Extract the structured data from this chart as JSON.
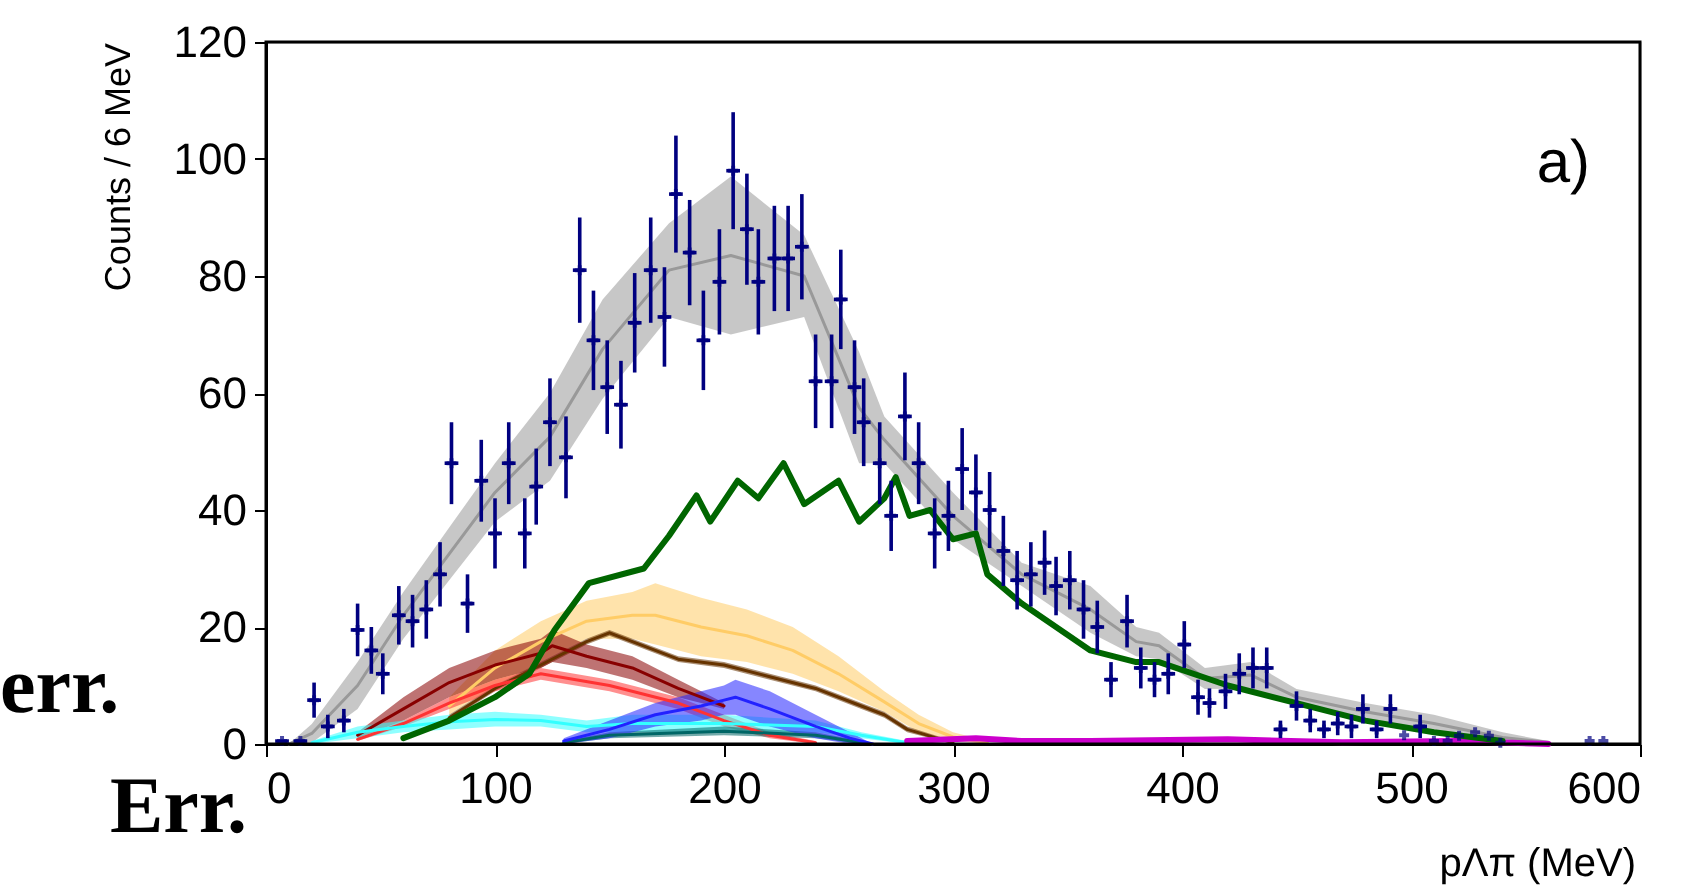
{
  "chart_data": {
    "type": "line",
    "xlabel": "pΛπ (MeV)",
    "ylabel": "Counts / 6 MeV",
    "annotations": [
      "a)",
      "err.",
      "Err."
    ],
    "xlim": [
      0,
      600
    ],
    "xticks": [
      0,
      100,
      200,
      300,
      400,
      500,
      600
    ],
    "ylim": [
      0,
      120
    ],
    "yticks": [
      0,
      20,
      40,
      60,
      80,
      100,
      120
    ],
    "grid": false,
    "line_style": "solid",
    "series": [
      {
        "type": "line",
        "color": "#999999",
        "x": [
          10,
          20,
          40,
          60,
          80,
          100,
          124,
          147,
          176,
          203,
          235,
          259,
          270,
          300,
          330,
          360,
          380,
          390,
          410,
          430,
          450,
          480,
          510,
          540,
          560
        ],
        "lower": [
          0,
          0.2,
          6,
          18,
          28,
          38,
          45,
          59,
          73,
          70,
          73,
          48,
          48,
          35,
          27,
          19,
          15,
          14.5,
          9.4,
          9.5,
          6.5,
          4,
          2,
          0.2,
          0
        ],
        "upper": [
          0,
          3.4,
          14,
          26,
          37,
          48,
          60,
          76,
          89,
          97,
          87,
          67,
          56,
          43,
          31,
          27,
          20,
          19,
          13,
          14,
          9.4,
          7,
          5,
          2,
          0.5
        ],
        "values": [
          0,
          1.8,
          10,
          22,
          32.5,
          43,
          52.5,
          67.5,
          81,
          83.5,
          80,
          57.5,
          52,
          39,
          29,
          23,
          17.5,
          16.8,
          11.2,
          11.8,
          8,
          5.5,
          3.5,
          1.1,
          0.3
        ]
      },
      {
        "type": "line",
        "color": "#ffcc66",
        "x": [
          80,
          100,
          120,
          140,
          160,
          170,
          190,
          210,
          230,
          250,
          270,
          285,
          300,
          315
        ],
        "lower": [
          5,
          10,
          14,
          18,
          18,
          17,
          15,
          14,
          12,
          9,
          5.5,
          2,
          0.5,
          0
        ],
        "upper": [
          8,
          16,
          21,
          24.5,
          26,
          27.5,
          25,
          23,
          20,
          15,
          9,
          5,
          2,
          0.5
        ],
        "values": [
          6.5,
          13,
          17.5,
          21,
          22,
          22,
          20,
          18.5,
          16,
          12,
          7.2,
          3.5,
          1.2,
          0.2
        ]
      },
      {
        "type": "line",
        "color": "#663300",
        "x": [
          80,
          100,
          120,
          140,
          150,
          160,
          180,
          200,
          220,
          240,
          260,
          270,
          280,
          300
        ],
        "lower": [
          4,
          9,
          13,
          17,
          18.5,
          17,
          14,
          13,
          11,
          9,
          6,
          4.5,
          2,
          0
        ],
        "upper": [
          5,
          10,
          14,
          18,
          19.5,
          18,
          15,
          14,
          12,
          10,
          7,
          5.5,
          3,
          0.5
        ],
        "values": [
          4.5,
          9.5,
          13.5,
          17.5,
          19,
          17.5,
          14.5,
          13.5,
          11.5,
          9.5,
          6.5,
          5,
          2.5,
          0.2
        ]
      },
      {
        "type": "line",
        "color": "#880000",
        "x": [
          40,
          60,
          80,
          100,
          120,
          125,
          140,
          160,
          180,
          190,
          200
        ],
        "lower": [
          1,
          4,
          8,
          11,
          13,
          14,
          13,
          11,
          8,
          7,
          6
        ],
        "upper": [
          2,
          8,
          13,
          16,
          18,
          19.5,
          17,
          15,
          11,
          9,
          7
        ],
        "values": [
          1.5,
          6,
          10.5,
          13.5,
          15.5,
          16.8,
          15,
          13,
          9.5,
          8,
          6.5
        ]
      },
      {
        "type": "line",
        "color": "#ff3333",
        "x": [
          40,
          60,
          80,
          100,
          120,
          150,
          180,
          200,
          220,
          240
        ],
        "lower": [
          0.5,
          3,
          6,
          9,
          11,
          9,
          6,
          3,
          1,
          0
        ],
        "upper": [
          1,
          4,
          8,
          11,
          13,
          11,
          8,
          5,
          2,
          0.5
        ],
        "values": [
          0.8,
          3.5,
          7,
          10,
          12,
          10,
          7,
          4,
          1.5,
          0.2
        ]
      },
      {
        "type": "line",
        "color": "#33ffff",
        "x": [
          20,
          40,
          60,
          80,
          100,
          120,
          140,
          160,
          200,
          240,
          260,
          280
        ],
        "lower": [
          0,
          1,
          2,
          2.5,
          3,
          3,
          2,
          2,
          2,
          2,
          1,
          0
        ],
        "upper": [
          0.5,
          3,
          4,
          5,
          5.5,
          5,
          4,
          5,
          5,
          4,
          2,
          0.5
        ],
        "values": [
          0.2,
          2,
          3,
          3.8,
          4.2,
          4,
          3,
          3.5,
          3.5,
          3,
          1.5,
          0.2
        ]
      },
      {
        "type": "line",
        "color": "#006666",
        "x": [
          130,
          150,
          200,
          240,
          260
        ],
        "lower": [
          0,
          1,
          1.5,
          1,
          0
        ],
        "upper": [
          0.5,
          2,
          3,
          2,
          0.5
        ],
        "values": [
          0.2,
          1.5,
          2.2,
          1.5,
          0.2
        ]
      },
      {
        "type": "line",
        "color": "#2222ff",
        "x": [
          130,
          150,
          170,
          190,
          200,
          205,
          220,
          240,
          255,
          265
        ],
        "lower": [
          0,
          1,
          3,
          4,
          5,
          5,
          3,
          1,
          0,
          0
        ],
        "upper": [
          1,
          4,
          7,
          9,
          10,
          11,
          9,
          5,
          2,
          0
        ],
        "values": [
          0.5,
          2.5,
          5,
          6.5,
          7.5,
          8,
          6,
          3,
          1,
          0
        ]
      },
      {
        "type": "line",
        "color": "#cc00cc",
        "x": [
          280,
          310,
          330,
          360,
          420,
          470,
          520,
          560
        ],
        "values": [
          0.5,
          1,
          0.5,
          0.5,
          0.8,
          0.3,
          0.5,
          0
        ]
      },
      {
        "type": "line",
        "color": "#006600",
        "x": [
          60,
          80,
          100,
          115,
          126,
          141,
          165,
          176,
          188,
          194,
          206,
          215,
          226,
          235,
          250,
          259,
          270,
          275,
          281,
          290,
          300,
          310,
          315,
          330,
          360,
          380,
          390,
          420,
          450,
          480,
          510,
          540
        ],
        "values": [
          1,
          4,
          8,
          12,
          19.5,
          27.5,
          30,
          35.6,
          42.5,
          38,
          45,
          42,
          48,
          41,
          45,
          38,
          42,
          45.6,
          39,
          40,
          35,
          36,
          29,
          24,
          16,
          14,
          14,
          10,
          7,
          4,
          2,
          0.5
        ]
      },
      {
        "type": "scatter",
        "color": "#000080",
        "marker": "cross",
        "x": [
          7,
          15,
          21,
          27,
          34,
          40,
          46,
          51,
          58,
          64,
          70,
          76,
          81,
          88,
          94,
          100,
          106,
          113,
          118,
          124,
          131,
          137,
          143,
          149,
          155,
          161,
          168,
          174,
          179,
          185,
          191,
          198,
          204,
          210,
          215,
          222,
          228,
          234,
          240,
          247,
          251,
          257,
          261,
          268,
          273,
          279,
          285,
          292,
          298,
          304,
          310,
          316,
          322,
          328,
          334,
          340,
          345,
          351,
          357,
          363,
          369,
          376,
          382,
          388,
          394,
          401,
          407,
          412,
          419,
          425,
          431,
          437,
          443,
          450,
          456,
          462,
          468,
          474,
          479,
          485,
          491,
          497,
          504,
          510,
          516,
          521,
          528,
          534,
          539,
          578,
          584
        ],
        "values": [
          0.5,
          0.5,
          7.5,
          3,
          4,
          19.5,
          16,
          12,
          22,
          21,
          23,
          29,
          48,
          24,
          45,
          36,
          48,
          36,
          44,
          55,
          49,
          81,
          69,
          61,
          58,
          72,
          81,
          73,
          94,
          84,
          69,
          79,
          98,
          88,
          79,
          83,
          83,
          85,
          62,
          62,
          76,
          61,
          55,
          48,
          39,
          56,
          48,
          36,
          39,
          47,
          43,
          40,
          33,
          28,
          29,
          31,
          27,
          28,
          23,
          20,
          11,
          21,
          13,
          11,
          12,
          17,
          8,
          7,
          9,
          12,
          13,
          13,
          2.5,
          6.5,
          4,
          2.5,
          3.5,
          3,
          6,
          2.5,
          6,
          1.5,
          3,
          0.5,
          0.5,
          1.4,
          2,
          1.4,
          0.2,
          0.5,
          0.5
        ],
        "errors": [
          null,
          null,
          3,
          2,
          2,
          4.5,
          4,
          3.5,
          5,
          4.5,
          5,
          5.5,
          7,
          5,
          7,
          6,
          7,
          6,
          6.5,
          7.5,
          7,
          9,
          8.5,
          8,
          7.5,
          8.5,
          9,
          8.5,
          10,
          9,
          8.5,
          9,
          10,
          9.5,
          9,
          9,
          9,
          9,
          8,
          8,
          8.5,
          8,
          7.5,
          7,
          6,
          7.5,
          7,
          6,
          6,
          7,
          6.5,
          6.5,
          6,
          5,
          5.5,
          5.5,
          5,
          5,
          5,
          4.5,
          3,
          4.5,
          3.5,
          3,
          3.5,
          4,
          3,
          2.5,
          3,
          3.5,
          3.5,
          3.5,
          1.5,
          2.5,
          2,
          1.5,
          2,
          2,
          2.5,
          1.5,
          2.5,
          null,
          2,
          null,
          null,
          null,
          null,
          null,
          null,
          null,
          null
        ],
        "xerrors": [
          3,
          3,
          3,
          3,
          3,
          3,
          3,
          3,
          3,
          3,
          3,
          3,
          3,
          3,
          3,
          3,
          3,
          3,
          3,
          3,
          3,
          3,
          3,
          3,
          3,
          3,
          3,
          3,
          3,
          3,
          3,
          3,
          3,
          3,
          3,
          3,
          3,
          3,
          3,
          3,
          3,
          3,
          3,
          3,
          3,
          3,
          3,
          3,
          3,
          3,
          3,
          3,
          3,
          3,
          3,
          3,
          3,
          3,
          3,
          3,
          3,
          3,
          3,
          3,
          3,
          3,
          3,
          3,
          3,
          3,
          3,
          3,
          3,
          3,
          3,
          3,
          3,
          3,
          3,
          3,
          3,
          null,
          3,
          null,
          null,
          null,
          null,
          null,
          null,
          null,
          null
        ]
      }
    ]
  }
}
